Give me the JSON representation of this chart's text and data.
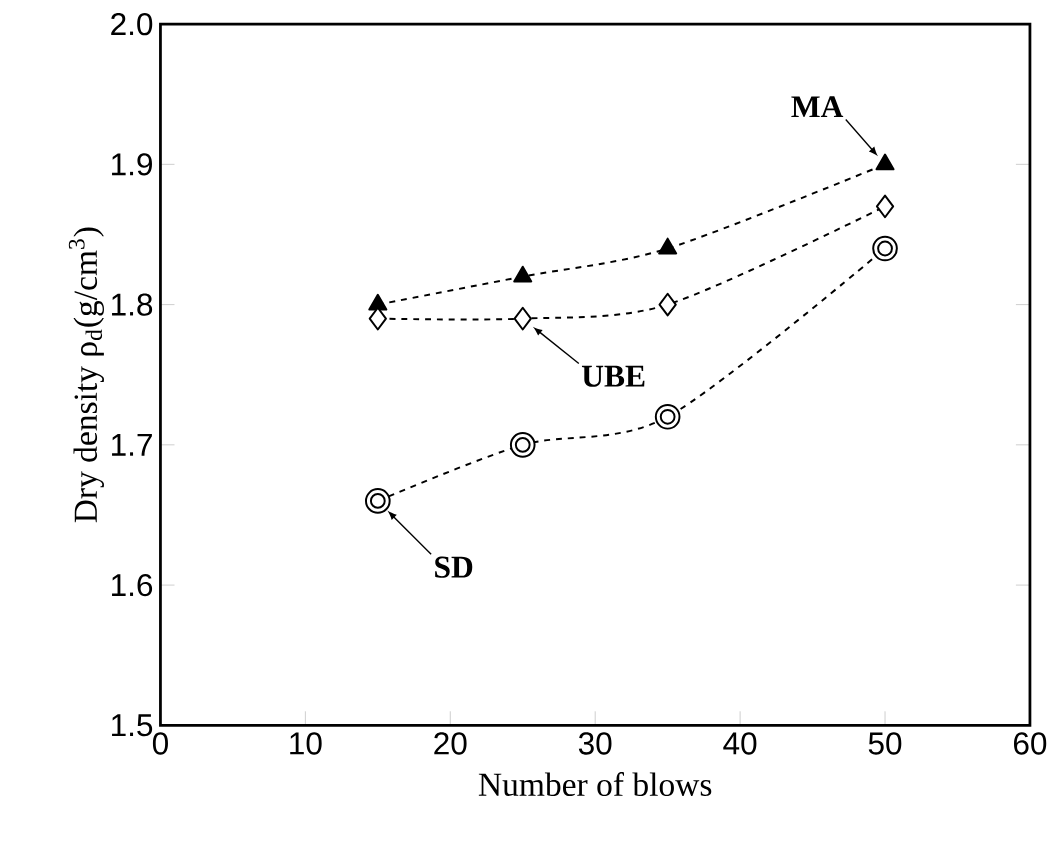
{
  "chart_data": {
    "type": "line",
    "xlabel": "Number of blows",
    "ylabel": "Dry density ρ$_{d}$(g/cm$^{3}$)",
    "x": [
      15,
      25,
      35,
      50
    ],
    "series": [
      {
        "color": "#000000",
        "marker": "triangle",
        "values": [
          1.8,
          1.82,
          1.84,
          1.9
        ]
      },
      {
        "color": "#000000",
        "marker": "diamond",
        "values": [
          1.79,
          1.79,
          1.8,
          1.87
        ]
      },
      {
        "color": "#000000",
        "marker": "circle",
        "values": [
          1.66,
          1.7,
          1.72,
          1.84
        ]
      }
    ],
    "annotations": [
      {
        "text": "MA",
        "x": 50,
        "y": 1.9
      },
      {
        "text": "UBE",
        "x": 25,
        "y": 1.79
      },
      {
        "text": "SD",
        "x": 15,
        "y": 1.66
      }
    ],
    "line_style": "dashed",
    "xlim": [
      0,
      60
    ],
    "xticks": [
      0,
      10,
      20,
      30,
      40,
      50,
      60
    ],
    "ylim": [
      1.5,
      2.0
    ],
    "yticks": [
      {
        "value": 1.5,
        "label": "1.5"
      },
      {
        "value": 1.6,
        "label": "1.6"
      },
      {
        "value": 1.7,
        "label": "1.7"
      },
      {
        "value": 1.8,
        "label": "1.8"
      },
      {
        "value": 1.9,
        "label": "1.9"
      },
      {
        "value": 2.0,
        "label": "2.0"
      }
    ]
  }
}
